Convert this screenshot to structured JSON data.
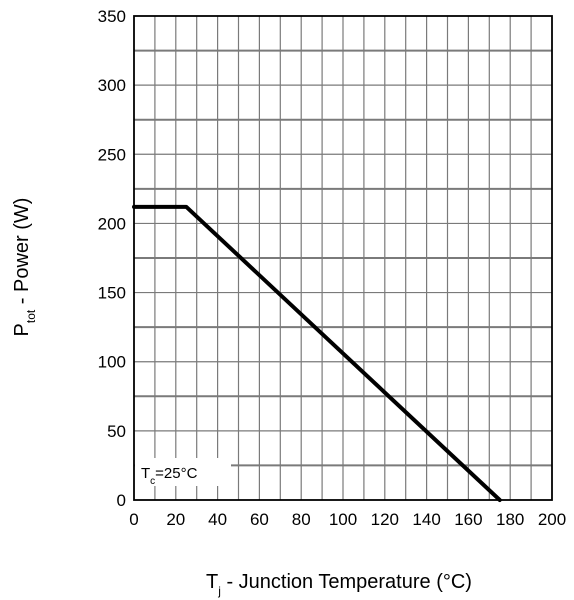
{
  "chart_data": {
    "type": "line",
    "x": [
      0,
      25,
      175
    ],
    "series": [
      {
        "values": [
          212,
          212,
          0
        ]
      }
    ],
    "xlim": [
      0,
      200
    ],
    "ylim": [
      0,
      350
    ],
    "x_ticks": [
      0,
      20,
      40,
      60,
      80,
      100,
      120,
      140,
      160,
      180,
      200
    ],
    "y_ticks": [
      0,
      50,
      100,
      150,
      200,
      250,
      300,
      350
    ],
    "x_tick_labels": [
      "0",
      "20",
      "40",
      "60",
      "80",
      "100",
      "120",
      "140",
      "160",
      "180",
      "200"
    ],
    "y_tick_labels": [
      "0",
      "50",
      "100",
      "150",
      "200",
      "250",
      "300",
      "350"
    ],
    "minor_x_step": 10,
    "minor_y_step": 25,
    "grid": true,
    "xlabel": {
      "main": "T",
      "sub": "j",
      "rest": " - Junction Temperature (°C)"
    },
    "ylabel": {
      "main": "P",
      "sub": "tot",
      "rest": " - Power (W)"
    },
    "annotation": {
      "main": "T",
      "sub": "c",
      "rest": "=25°C"
    }
  },
  "colors": {
    "line": "#000000",
    "grid": "#7a7a7a",
    "frame": "#000000",
    "background": "#ffffff"
  }
}
